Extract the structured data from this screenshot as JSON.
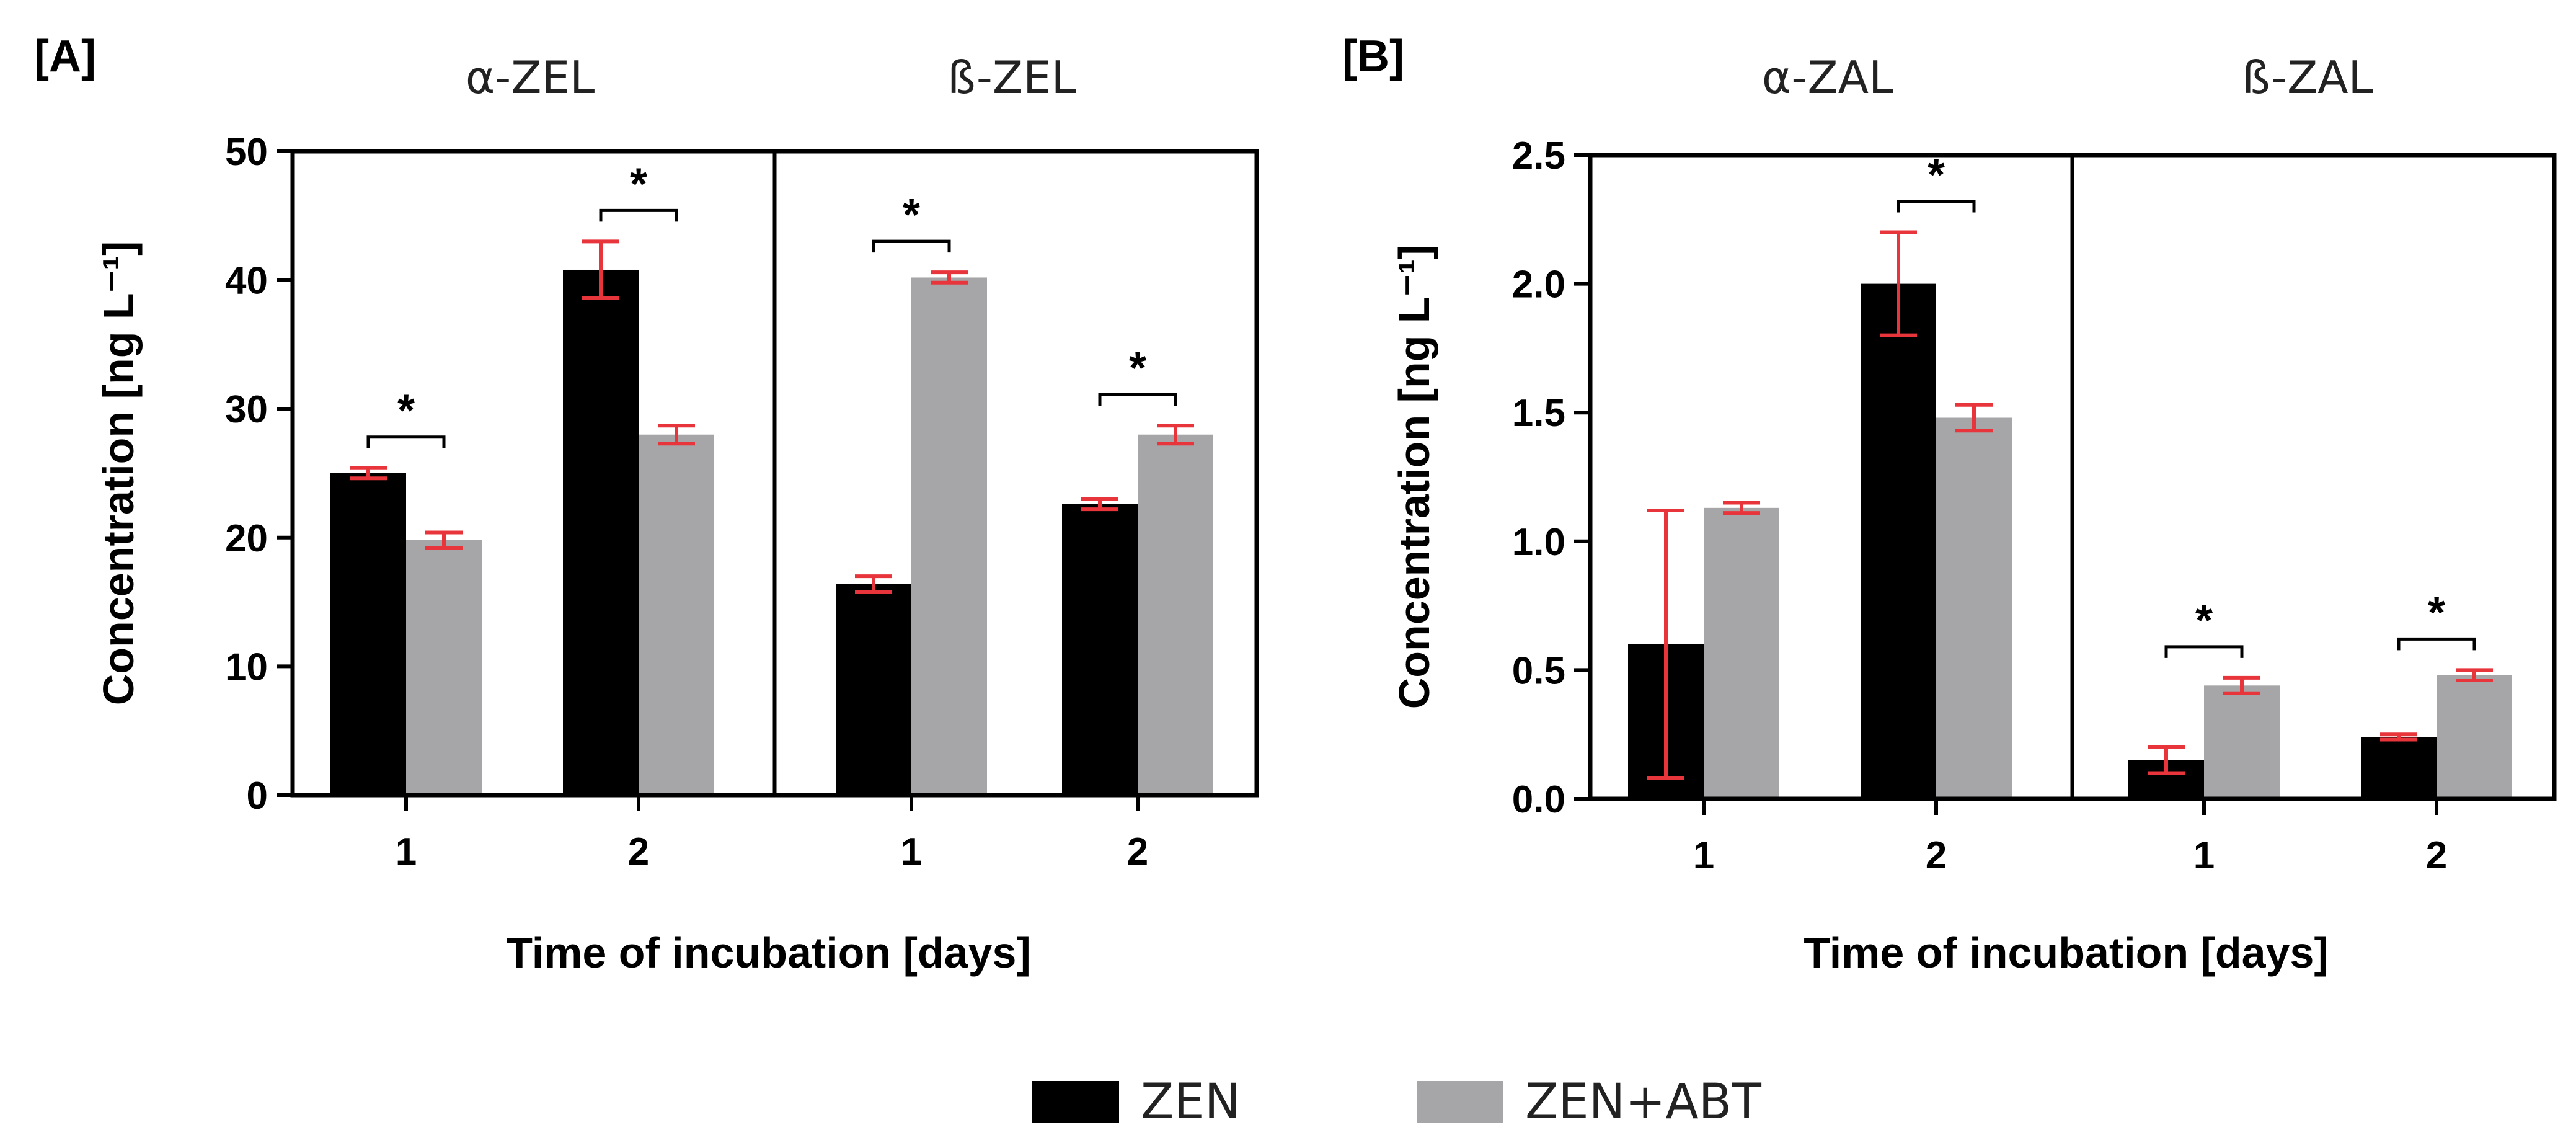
{
  "chart_data": [
    {
      "type": "bar",
      "panel": "[A]",
      "ylabel": "Concentration [ng L⁻¹]",
      "xlabel": "Time of incubation [days]",
      "ylim": [
        0,
        50
      ],
      "yticks": [
        0,
        10,
        20,
        30,
        40,
        50
      ],
      "groups": [
        {
          "title": "α-ZEL",
          "categories": [
            "1",
            "2"
          ],
          "series": [
            {
              "name": "ZEN",
              "values": [
                25.0,
                40.8
              ],
              "errors": [
                0.4,
                2.2
              ]
            },
            {
              "name": "ZEN+ABT",
              "values": [
                19.8,
                28.0
              ],
              "errors": [
                0.6,
                0.7
              ]
            }
          ],
          "significant": [
            true,
            true
          ]
        },
        {
          "title": "ß-ZEL",
          "categories": [
            "1",
            "2"
          ],
          "series": [
            {
              "name": "ZEN",
              "values": [
                16.4,
                22.6
              ],
              "errors": [
                0.6,
                0.4
              ]
            },
            {
              "name": "ZEN+ABT",
              "values": [
                40.2,
                28.0
              ],
              "errors": [
                0.4,
                0.7
              ]
            }
          ],
          "significant": [
            true,
            true
          ]
        }
      ]
    },
    {
      "type": "bar",
      "panel": "[B]",
      "ylabel": "Concentration [ng L⁻¹]",
      "xlabel": "Time of incubation [days]",
      "ylim": [
        0,
        2.5
      ],
      "yticks": [
        0.0,
        0.5,
        1.0,
        1.5,
        2.0,
        2.5
      ],
      "groups": [
        {
          "title": "α-ZAL",
          "categories": [
            "1",
            "2"
          ],
          "series": [
            {
              "name": "ZEN",
              "values": [
                0.6,
                2.0
              ],
              "errors": [
                0.52,
                0.2
              ]
            },
            {
              "name": "ZEN+ABT",
              "values": [
                1.13,
                1.48
              ],
              "errors": [
                0.02,
                0.05
              ]
            }
          ],
          "significant": [
            false,
            true
          ]
        },
        {
          "title": "ß-ZAL",
          "categories": [
            "1",
            "2"
          ],
          "series": [
            {
              "name": "ZEN",
              "values": [
                0.15,
                0.24
              ],
              "errors": [
                0.05,
                0.01
              ]
            },
            {
              "name": "ZEN+ABT",
              "values": [
                0.44,
                0.48
              ],
              "errors": [
                0.03,
                0.02
              ]
            }
          ],
          "significant": [
            true,
            true
          ]
        }
      ]
    }
  ],
  "legend": [
    {
      "label": "ZEN",
      "color": "#000000"
    },
    {
      "label": "ZEN+ABT",
      "color": "#a6a6a8"
    }
  ],
  "colors": {
    "zen": "#000000",
    "zen_abt": "#a6a6a8",
    "error_bar": "#e8353b",
    "axis": "#000000"
  },
  "significance_marker": "*"
}
